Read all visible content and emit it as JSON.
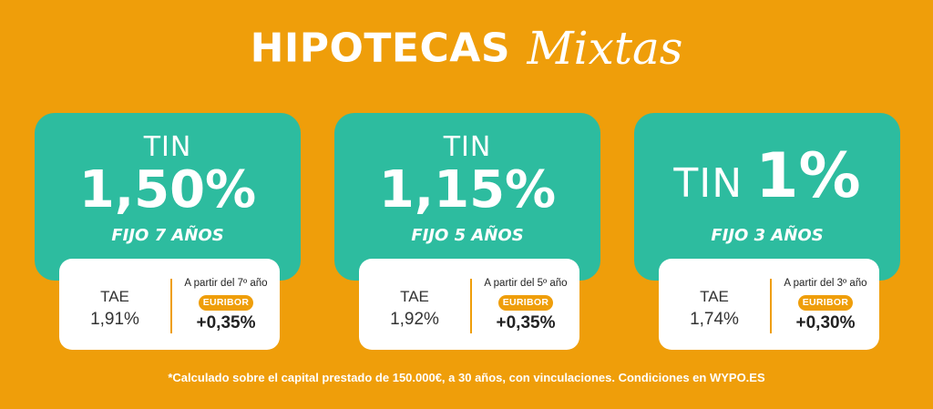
{
  "header": {
    "title_main": "HIPOTECAS",
    "title_script": "Mixtas"
  },
  "cards": [
    {
      "tin_label": "TIN",
      "tin_rate": "1,50%",
      "fijo": "FIJO 7 AÑOS",
      "tae_label": "TAE",
      "tae_value": "1,91%",
      "a_partir": "A partir del 7º año",
      "euribor": "EURIBOR",
      "diferencial": "+0,35%"
    },
    {
      "tin_label": "TIN",
      "tin_rate": "1,15%",
      "fijo": "FIJO 5 AÑOS",
      "tae_label": "TAE",
      "tae_value": "1,92%",
      "a_partir": "A partir del 5º año",
      "euribor": "EURIBOR",
      "diferencial": "+0,35%"
    },
    {
      "tin_label": "TIN",
      "tin_rate": "1%",
      "fijo": "FIJO 3 AÑOS",
      "tae_label": "TAE",
      "tae_value": "1,74%",
      "a_partir": "A partir del 3º año",
      "euribor": "EURIBOR",
      "diferencial": "+0,30%"
    }
  ],
  "footnote": "*Calculado sobre el capital prestado de 150.000€, a 30 años, con vinculaciones. Condiciones en WYPO.ES",
  "colors": {
    "background": "#EF9E0A",
    "card_green": "#2DBC9F",
    "badge": "#EF9E0A"
  }
}
